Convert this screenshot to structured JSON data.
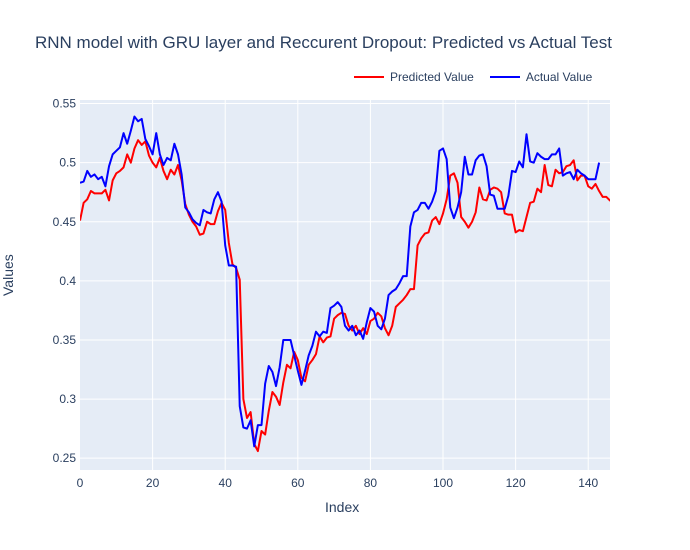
{
  "chart_data": {
    "type": "line",
    "title": "RNN model with GRU layer and Reccurent Dropout: Predicted vs Actual Test",
    "xlabel": "Index",
    "ylabel": "Values",
    "xlim": [
      0,
      146
    ],
    "ylim": [
      0.24,
      0.553
    ],
    "x_ticks": [
      0,
      20,
      40,
      60,
      80,
      100,
      120,
      140
    ],
    "y_ticks": [
      0.25,
      0.3,
      0.35,
      0.4,
      0.45,
      0.5,
      0.55
    ],
    "y_tick_labels": [
      "0.25",
      "0.3",
      "0.35",
      "0.4",
      "0.45",
      "0.5",
      "0.55"
    ],
    "legend_position": "top-right",
    "series": [
      {
        "name": "Predicted Value",
        "color": "#ff0000",
        "values": [
          0.451,
          0.466,
          0.469,
          0.476,
          0.474,
          0.474,
          0.474,
          0.477,
          0.468,
          0.485,
          0.491,
          0.493,
          0.496,
          0.507,
          0.5,
          0.512,
          0.519,
          0.515,
          0.518,
          0.506,
          0.5,
          0.496,
          0.504,
          0.493,
          0.486,
          0.494,
          0.49,
          0.498,
          0.485,
          0.465,
          0.456,
          0.45,
          0.446,
          0.439,
          0.44,
          0.45,
          0.448,
          0.448,
          0.459,
          0.466,
          0.46,
          0.432,
          0.414,
          0.411,
          0.401,
          0.3,
          0.284,
          0.289,
          0.262,
          0.256,
          0.273,
          0.27,
          0.29,
          0.306,
          0.302,
          0.295,
          0.314,
          0.329,
          0.326,
          0.34,
          0.333,
          0.318,
          0.315,
          0.329,
          0.333,
          0.338,
          0.353,
          0.348,
          0.352,
          0.353,
          0.368,
          0.371,
          0.373,
          0.372,
          0.362,
          0.358,
          0.362,
          0.355,
          0.36,
          0.355,
          0.366,
          0.368,
          0.373,
          0.37,
          0.36,
          0.354,
          0.362,
          0.378,
          0.381,
          0.384,
          0.388,
          0.393,
          0.393,
          0.43,
          0.436,
          0.44,
          0.441,
          0.451,
          0.454,
          0.448,
          0.457,
          0.469,
          0.489,
          0.491,
          0.483,
          0.454,
          0.45,
          0.445,
          0.45,
          0.458,
          0.479,
          0.469,
          0.468,
          0.477,
          0.479,
          0.478,
          0.475,
          0.457,
          0.456,
          0.456,
          0.441,
          0.443,
          0.442,
          0.454,
          0.466,
          0.467,
          0.478,
          0.475,
          0.498,
          0.481,
          0.48,
          0.494,
          0.491,
          0.492,
          0.497,
          0.498,
          0.502,
          0.485,
          0.489,
          0.489,
          0.48,
          0.478,
          0.482,
          0.476,
          0.471,
          0.471,
          0.468,
          0.468
        ]
      },
      {
        "name": "Actual Value",
        "color": "#0000ff",
        "values": [
          0.483,
          0.484,
          0.493,
          0.488,
          0.49,
          0.486,
          0.488,
          0.48,
          0.497,
          0.507,
          0.51,
          0.513,
          0.525,
          0.516,
          0.527,
          0.539,
          0.535,
          0.537,
          0.52,
          0.514,
          0.507,
          0.525,
          0.507,
          0.498,
          0.504,
          0.502,
          0.516,
          0.507,
          0.49,
          0.462,
          0.458,
          0.452,
          0.449,
          0.447,
          0.46,
          0.458,
          0.457,
          0.469,
          0.475,
          0.467,
          0.43,
          0.413,
          0.413,
          0.412,
          0.294,
          0.276,
          0.275,
          0.282,
          0.26,
          0.278,
          0.278,
          0.313,
          0.328,
          0.323,
          0.311,
          0.327,
          0.35,
          0.35,
          0.35,
          0.337,
          0.324,
          0.312,
          0.324,
          0.337,
          0.345,
          0.357,
          0.353,
          0.357,
          0.356,
          0.377,
          0.379,
          0.382,
          0.378,
          0.362,
          0.358,
          0.362,
          0.354,
          0.358,
          0.351,
          0.365,
          0.377,
          0.374,
          0.362,
          0.359,
          0.368,
          0.388,
          0.391,
          0.393,
          0.398,
          0.404,
          0.404,
          0.446,
          0.458,
          0.46,
          0.466,
          0.466,
          0.461,
          0.467,
          0.476,
          0.51,
          0.512,
          0.503,
          0.462,
          0.453,
          0.462,
          0.475,
          0.505,
          0.49,
          0.49,
          0.502,
          0.506,
          0.507,
          0.497,
          0.473,
          0.472,
          0.461,
          0.461,
          0.461,
          0.472,
          0.493,
          0.492,
          0.501,
          0.496,
          0.524,
          0.501,
          0.5,
          0.508,
          0.505,
          0.503,
          0.503,
          0.507,
          0.507,
          0.512,
          0.489,
          0.491,
          0.492,
          0.486,
          0.494,
          0.491,
          0.489,
          0.486,
          0.486,
          0.486,
          0.5
        ]
      }
    ]
  }
}
